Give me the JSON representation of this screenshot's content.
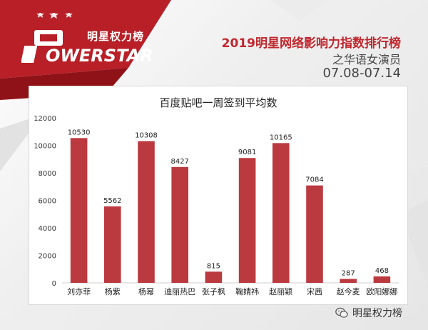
{
  "brand": {
    "logo_cn": "明星权力榜",
    "logo_en": "OWERSTAR",
    "logo_mark": "P",
    "accent": "#c0262d",
    "wechat_account": "明星权力榜"
  },
  "header": {
    "title": "2019明星网络影响力指数排行榜",
    "subtitle": "之华语女演员",
    "date_range": "07.08-07.14"
  },
  "chart_data": {
    "type": "bar",
    "title": "百度贴吧一周签到平均数",
    "categories": [
      "刘亦菲",
      "杨紫",
      "杨幂",
      "迪丽热巴",
      "张子枫",
      "鞠婧祎",
      "赵丽颖",
      "宋茜",
      "赵今麦",
      "欧阳娜娜"
    ],
    "values": [
      10530,
      5562,
      10308,
      8427,
      815,
      9081,
      10165,
      7084,
      287,
      468
    ],
    "ylim": [
      0,
      12000
    ],
    "yticks": [
      0,
      2000,
      4000,
      6000,
      8000,
      10000,
      12000
    ],
    "bar_color": "#bb3a40",
    "grid": false,
    "legend": "none"
  }
}
